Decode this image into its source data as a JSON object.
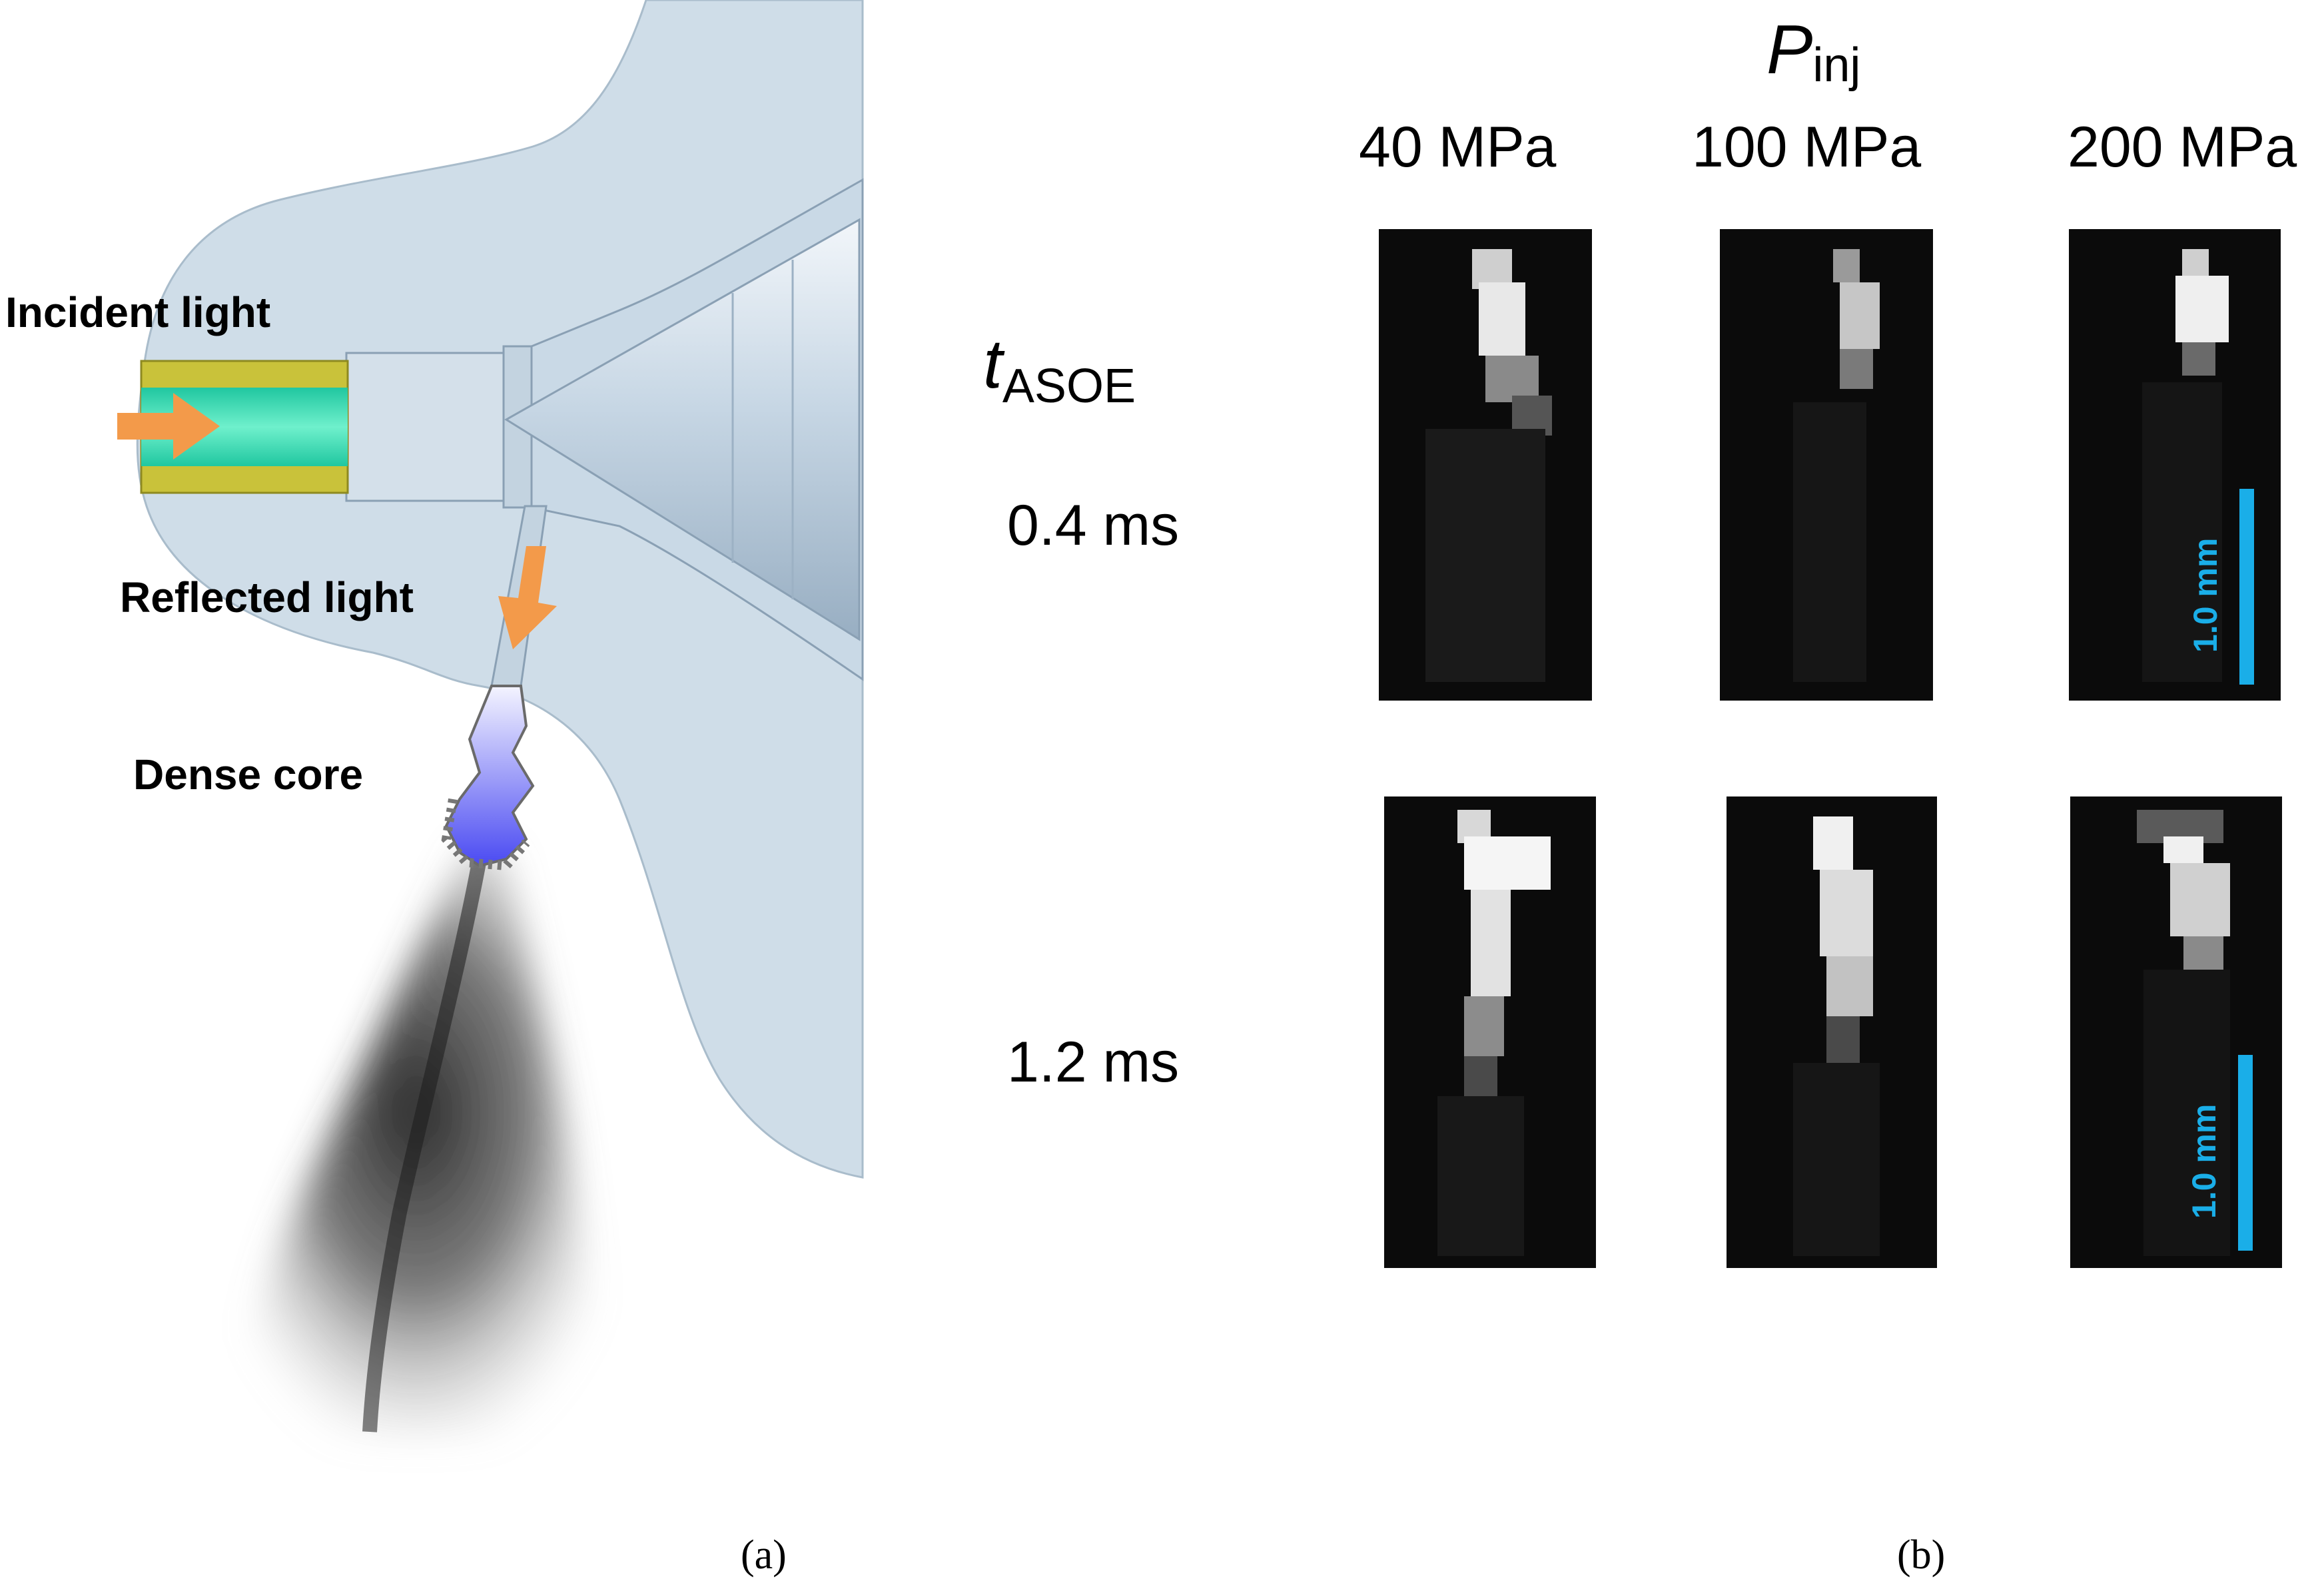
{
  "panel_a": {
    "labels": {
      "incident_light": "Incident light",
      "reflected_light": "Reflected light",
      "dense_core": "Dense core"
    },
    "caption": "(a)",
    "colors": {
      "housing": "#cfdde8",
      "fiber_jacket": "#c9c23a",
      "fiber_core": "#2fd6a8",
      "arrow": "#f39a4a",
      "spray": "#3a3a3a",
      "dense_core": "#5b5bf0"
    }
  },
  "panel_b": {
    "title_symbol": "P",
    "title_sub": "inj",
    "row_title_symbol": "t",
    "row_title_sub": "ASOE",
    "columns": [
      "40 MPa",
      "100 MPa",
      "200 MPa"
    ],
    "rows": [
      "0.4 ms",
      "1.2 ms"
    ],
    "scale_bar_label": "1.0 mm",
    "caption": "(b)",
    "colors": {
      "frame": "#0b0b0b",
      "scale_bar": "#1aaee8"
    }
  }
}
